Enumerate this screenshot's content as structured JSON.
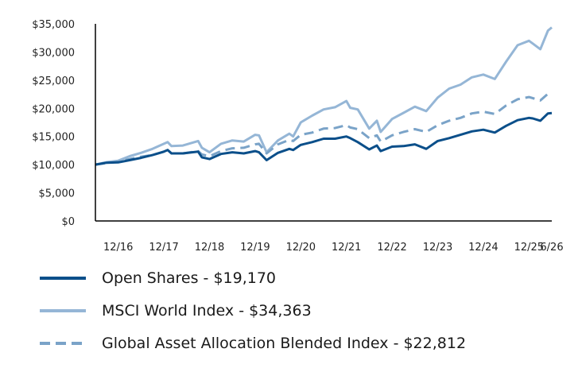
{
  "chart_data": {
    "type": "line",
    "title": "",
    "xlabel": "",
    "ylabel": "",
    "ylim": [
      0,
      35000
    ],
    "xlim": [
      "2016-06",
      "2026-06"
    ],
    "y_ticks": [
      {
        "value": 0,
        "label": "$0"
      },
      {
        "value": 5000,
        "label": "$5,000"
      },
      {
        "value": 10000,
        "label": "$10,000"
      },
      {
        "value": 15000,
        "label": "$15,000"
      },
      {
        "value": 20000,
        "label": "$20,000"
      },
      {
        "value": 25000,
        "label": "$25,000"
      },
      {
        "value": 30000,
        "label": "$30,000"
      },
      {
        "value": 35000,
        "label": "$35,000"
      }
    ],
    "x_ticks": [
      {
        "value": "2016-12",
        "label": "12/16"
      },
      {
        "value": "2017-12",
        "label": "12/17"
      },
      {
        "value": "2018-12",
        "label": "12/18"
      },
      {
        "value": "2019-12",
        "label": "12/19"
      },
      {
        "value": "2020-12",
        "label": "12/20"
      },
      {
        "value": "2021-12",
        "label": "12/21"
      },
      {
        "value": "2022-12",
        "label": "12/22"
      },
      {
        "value": "2023-12",
        "label": "12/23"
      },
      {
        "value": "2024-12",
        "label": "12/24"
      },
      {
        "value": "2025-12",
        "label": "12/25"
      },
      {
        "value": "2026-06",
        "label": "6/26"
      }
    ],
    "series": [
      {
        "name": "MSCI World Index",
        "legend_label": "MSCI World Index - $34,363",
        "color": "#95b6d6",
        "dashed": false,
        "points": [
          [
            "2016-06",
            10000
          ],
          [
            "2016-09",
            10450
          ],
          [
            "2016-12",
            10700
          ],
          [
            "2017-03",
            11500
          ],
          [
            "2017-06",
            12100
          ],
          [
            "2017-09",
            12800
          ],
          [
            "2017-12",
            13700
          ],
          [
            "2018-01",
            14000
          ],
          [
            "2018-02",
            13300
          ],
          [
            "2018-05",
            13400
          ],
          [
            "2018-09",
            14200
          ],
          [
            "2018-10",
            13000
          ],
          [
            "2018-12",
            12200
          ],
          [
            "2019-03",
            13700
          ],
          [
            "2019-06",
            14300
          ],
          [
            "2019-09",
            14100
          ],
          [
            "2019-12",
            15300
          ],
          [
            "2020-01",
            15200
          ],
          [
            "2020-03",
            12200
          ],
          [
            "2020-06",
            14300
          ],
          [
            "2020-09",
            15500
          ],
          [
            "2020-10",
            15000
          ],
          [
            "2020-12",
            17500
          ],
          [
            "2021-03",
            18700
          ],
          [
            "2021-06",
            19800
          ],
          [
            "2021-09",
            20200
          ],
          [
            "2021-12",
            21300
          ],
          [
            "2022-01",
            20100
          ],
          [
            "2022-03",
            19800
          ],
          [
            "2022-06",
            16400
          ],
          [
            "2022-08",
            17800
          ],
          [
            "2022-09",
            15800
          ],
          [
            "2022-12",
            18100
          ],
          [
            "2023-03",
            19200
          ],
          [
            "2023-06",
            20300
          ],
          [
            "2023-09",
            19500
          ],
          [
            "2023-12",
            21900
          ],
          [
            "2024-03",
            23500
          ],
          [
            "2024-06",
            24200
          ],
          [
            "2024-09",
            25500
          ],
          [
            "2024-12",
            26000
          ],
          [
            "2025-03",
            25200
          ],
          [
            "2025-06",
            28300
          ],
          [
            "2025-09",
            31200
          ],
          [
            "2025-12",
            32000
          ],
          [
            "2026-01",
            31500
          ],
          [
            "2026-03",
            30500
          ],
          [
            "2026-05",
            33800
          ],
          [
            "2026-06",
            34363
          ]
        ]
      },
      {
        "name": "Global Asset Allocation Blended Index",
        "legend_label": "Global Asset Allocation Blended Index - $22,812",
        "color": "#7aa3c8",
        "dashed": true,
        "points": [
          [
            "2016-06",
            10000
          ],
          [
            "2016-09",
            10300
          ],
          [
            "2016-12",
            10500
          ],
          [
            "2017-03",
            11000
          ],
          [
            "2017-06",
            11400
          ],
          [
            "2017-09",
            11700
          ],
          [
            "2017-12",
            12300
          ],
          [
            "2018-01",
            12600
          ],
          [
            "2018-02",
            12000
          ],
          [
            "2018-05",
            12000
          ],
          [
            "2018-09",
            12400
          ],
          [
            "2018-10",
            11800
          ],
          [
            "2018-12",
            11500
          ],
          [
            "2019-03",
            12400
          ],
          [
            "2019-06",
            12900
          ],
          [
            "2019-09",
            13000
          ],
          [
            "2019-12",
            13600
          ],
          [
            "2020-01",
            13700
          ],
          [
            "2020-03",
            12000
          ],
          [
            "2020-06",
            13600
          ],
          [
            "2020-09",
            14400
          ],
          [
            "2020-10",
            14200
          ],
          [
            "2020-12",
            15300
          ],
          [
            "2021-03",
            15700
          ],
          [
            "2021-06",
            16400
          ],
          [
            "2021-09",
            16500
          ],
          [
            "2021-12",
            17000
          ],
          [
            "2022-01",
            16600
          ],
          [
            "2022-03",
            16300
          ],
          [
            "2022-06",
            14700
          ],
          [
            "2022-08",
            15200
          ],
          [
            "2022-09",
            14100
          ],
          [
            "2022-12",
            15200
          ],
          [
            "2023-03",
            15800
          ],
          [
            "2023-06",
            16300
          ],
          [
            "2023-09",
            15800
          ],
          [
            "2023-12",
            17000
          ],
          [
            "2024-03",
            17800
          ],
          [
            "2024-06",
            18300
          ],
          [
            "2024-09",
            19100
          ],
          [
            "2024-12",
            19400
          ],
          [
            "2025-03",
            19000
          ],
          [
            "2025-06",
            20500
          ],
          [
            "2025-09",
            21600
          ],
          [
            "2025-12",
            22000
          ],
          [
            "2026-01",
            21800
          ],
          [
            "2026-03",
            21400
          ],
          [
            "2026-05",
            22600
          ],
          [
            "2026-06",
            22812
          ]
        ]
      },
      {
        "name": "Open Shares",
        "legend_label": "Open Shares - $19,170",
        "color": "#0b4f8a",
        "dashed": false,
        "points": [
          [
            "2016-06",
            10000
          ],
          [
            "2016-09",
            10350
          ],
          [
            "2016-12",
            10400
          ],
          [
            "2017-03",
            10800
          ],
          [
            "2017-06",
            11200
          ],
          [
            "2017-09",
            11700
          ],
          [
            "2017-12",
            12300
          ],
          [
            "2018-01",
            12600
          ],
          [
            "2018-02",
            12000
          ],
          [
            "2018-05",
            12000
          ],
          [
            "2018-09",
            12300
          ],
          [
            "2018-10",
            11300
          ],
          [
            "2018-12",
            11000
          ],
          [
            "2019-03",
            11900
          ],
          [
            "2019-06",
            12200
          ],
          [
            "2019-09",
            12000
          ],
          [
            "2019-12",
            12400
          ],
          [
            "2020-01",
            12200
          ],
          [
            "2020-03",
            10800
          ],
          [
            "2020-06",
            12100
          ],
          [
            "2020-09",
            12800
          ],
          [
            "2020-10",
            12600
          ],
          [
            "2020-12",
            13500
          ],
          [
            "2021-03",
            14000
          ],
          [
            "2021-06",
            14600
          ],
          [
            "2021-09",
            14600
          ],
          [
            "2021-12",
            15000
          ],
          [
            "2022-01",
            14700
          ],
          [
            "2022-03",
            14000
          ],
          [
            "2022-06",
            12700
          ],
          [
            "2022-08",
            13400
          ],
          [
            "2022-09",
            12400
          ],
          [
            "2022-12",
            13200
          ],
          [
            "2023-03",
            13300
          ],
          [
            "2023-06",
            13600
          ],
          [
            "2023-09",
            12800
          ],
          [
            "2023-12",
            14200
          ],
          [
            "2024-03",
            14700
          ],
          [
            "2024-06",
            15300
          ],
          [
            "2024-09",
            15900
          ],
          [
            "2024-12",
            16200
          ],
          [
            "2025-03",
            15700
          ],
          [
            "2025-06",
            16900
          ],
          [
            "2025-09",
            17900
          ],
          [
            "2025-12",
            18300
          ],
          [
            "2026-01",
            18200
          ],
          [
            "2026-03",
            17800
          ],
          [
            "2026-05",
            19100
          ],
          [
            "2026-06",
            19170
          ]
        ]
      }
    ],
    "legend": {
      "placement": "bottom",
      "order": [
        "Open Shares",
        "MSCI World Index",
        "Global Asset Allocation Blended Index"
      ]
    },
    "grid": false
  }
}
